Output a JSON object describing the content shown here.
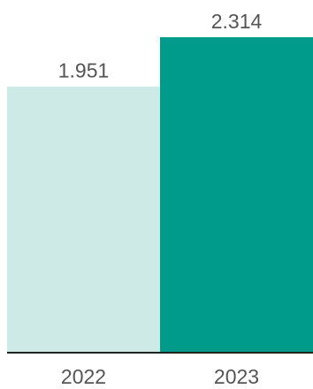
{
  "chart_data": {
    "type": "bar",
    "categories": [
      "2022",
      "2023"
    ],
    "values": [
      1.951,
      2.314
    ],
    "value_labels": [
      "1.951",
      "2.314"
    ],
    "colors": [
      "#cdeae6",
      "#009b8a"
    ],
    "ylim": [
      0,
      2.314
    ],
    "grid": false,
    "legend": "none",
    "title": "",
    "xlabel": "",
    "ylabel": ""
  }
}
